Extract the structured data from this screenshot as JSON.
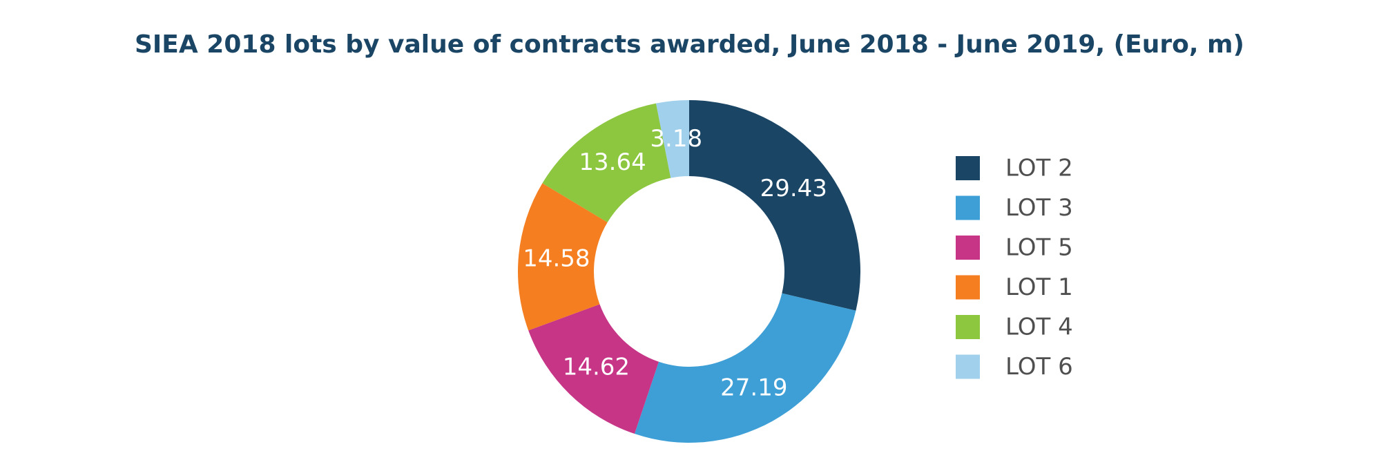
{
  "chart_data": {
    "type": "pie",
    "variant": "donut",
    "title": "SIEA 2018 lots by value of contracts awarded, June 2018 - June 2019, (Euro, m)",
    "categories": [
      "LOT 2",
      "LOT 3",
      "LOT 5",
      "LOT 1",
      "LOT 4",
      "LOT 6"
    ],
    "values": [
      29.43,
      27.19,
      14.62,
      14.58,
      13.64,
      3.18
    ],
    "data_labels": [
      "29.43",
      "27.19",
      "14.62",
      "14.58",
      "13.64",
      "3.18"
    ],
    "colors": [
      "#1a4565",
      "#3d9fd6",
      "#c73587",
      "#f47e20",
      "#8dc63f",
      "#a0d0ec"
    ],
    "start_angle_deg": 0,
    "direction": "clockwise",
    "legend": {
      "position": "right",
      "entries": [
        "LOT 2",
        "LOT 3",
        "LOT 5",
        "LOT 1",
        "LOT 4",
        "LOT 6"
      ]
    }
  }
}
